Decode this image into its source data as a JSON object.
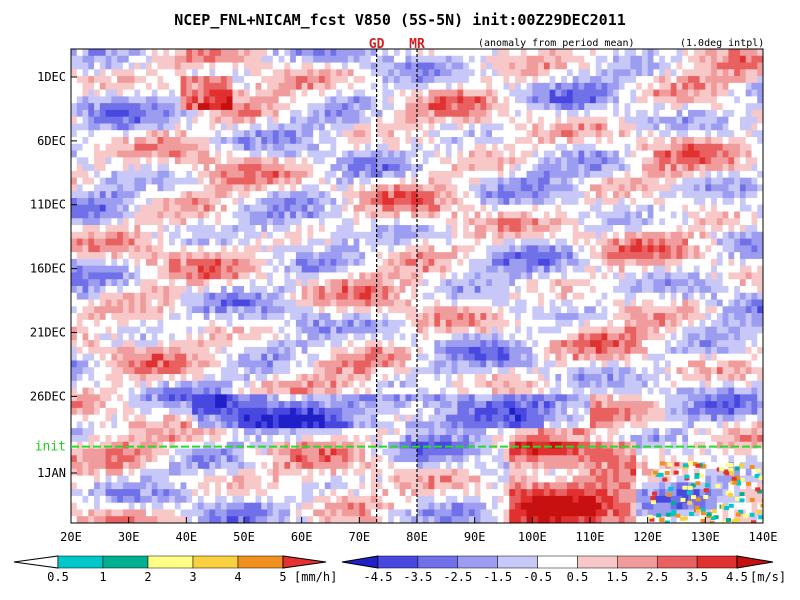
{
  "title": "NCEP_FNL+NICAM_fcst V850 (5S-5N) init:00Z29DEC2011",
  "subtitle_left": "(anomaly from period mean)",
  "subtitle_right": "(1.0deg intpl)",
  "markers": [
    {
      "label": "GD",
      "lon": 73
    },
    {
      "label": "MR",
      "lon": 80
    }
  ],
  "init_label": "init",
  "chart_data": {
    "type": "heatmap",
    "title": "NCEP_FNL+NICAM_fcst V850 (5S-5N) init:00Z29DEC2011",
    "x_ticks": [
      "20E",
      "30E",
      "40E",
      "50E",
      "60E",
      "70E",
      "80E",
      "90E",
      "100E",
      "110E",
      "120E",
      "130E",
      "140E"
    ],
    "x_values": [
      20,
      30,
      40,
      50,
      60,
      70,
      80,
      90,
      100,
      110,
      120,
      130,
      140
    ],
    "xlim": [
      20,
      140
    ],
    "y_ticks": [
      "1DEC",
      "6DEC",
      "11DEC",
      "16DEC",
      "21DEC",
      "26DEC",
      "1JAN"
    ],
    "y_values": [
      1,
      6,
      11,
      16,
      21,
      26,
      32
    ],
    "ylim_days": [
      -3,
      38
    ],
    "init_day": 29,
    "v850_colorbar": {
      "unit": "[m/s]",
      "labels": [
        "-4.5",
        "-3.5",
        "-2.5",
        "-1.5",
        "-0.5",
        "0.5",
        "1.5",
        "2.5",
        "3.5",
        "4.5"
      ],
      "colors": [
        "#2020c8",
        "#4848e0",
        "#7070e8",
        "#9c9cf0",
        "#c8c8f8",
        "#ffffff",
        "#f8c8c8",
        "#f09c9c",
        "#e86060",
        "#e03030",
        "#c81010"
      ]
    },
    "rain_colorbar": {
      "unit": "[mm/h]",
      "labels": [
        "0.5",
        "1",
        "2",
        "3",
        "4",
        "5"
      ],
      "colors": [
        "#00c8c8",
        "#00b090",
        "#ffff88",
        "#f8d040",
        "#f09020",
        "#e83030"
      ]
    }
  }
}
